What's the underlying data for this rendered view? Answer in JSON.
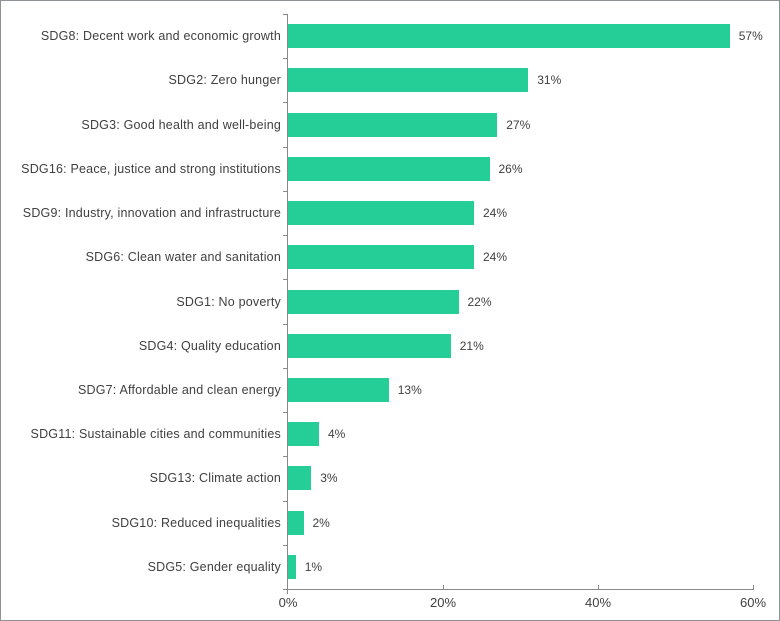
{
  "chart_data": {
    "type": "bar",
    "orientation": "horizontal",
    "title": "",
    "xlabel": "",
    "ylabel": "",
    "categories": [
      "SDG8: Decent work and economic growth",
      "SDG2: Zero hunger",
      "SDG3: Good health and well-being",
      "SDG16: Peace, justice and strong institutions",
      "SDG9: Industry, innovation and infrastructure",
      "SDG6: Clean water and sanitation",
      "SDG1: No poverty",
      "SDG4: Quality education",
      "SDG7: Affordable and clean energy",
      "SDG11: Sustainable cities and communities",
      "SDG13: Climate action",
      "SDG10: Reduced inequalities",
      "SDG5: Gender equality"
    ],
    "values": [
      57,
      31,
      27,
      26,
      24,
      24,
      22,
      21,
      13,
      4,
      3,
      2,
      1
    ],
    "value_labels": [
      "57%",
      "31%",
      "27%",
      "26%",
      "24%",
      "24%",
      "22%",
      "21%",
      "13%",
      "4%",
      "3%",
      "2%",
      "1%"
    ],
    "xlim": [
      0,
      60
    ],
    "x_tick_values": [
      0,
      20,
      40,
      60
    ],
    "x_tick_labels": [
      "0%",
      "20%",
      "40%",
      "60%"
    ],
    "grid": false,
    "legend": false,
    "colors": {
      "bar": "#25CD97",
      "axis": "#898989",
      "text": "#404040",
      "frame_border": "#8f9294",
      "background": "#ffffff"
    }
  }
}
